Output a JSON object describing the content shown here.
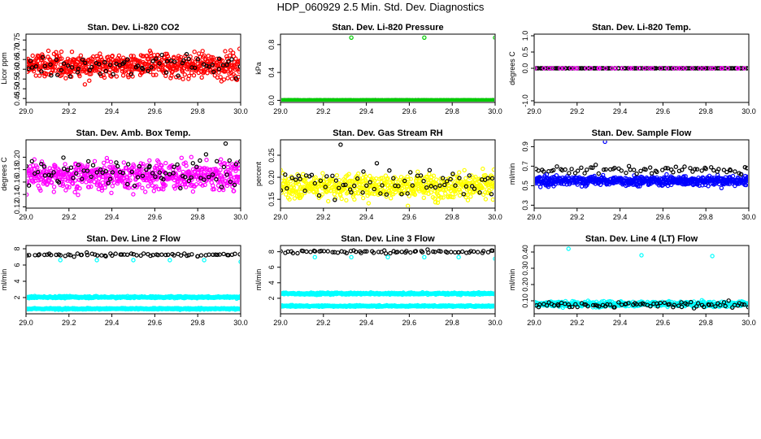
{
  "figure": {
    "title": "HDP_060929  2.5 Min. Std. Dev. Diagnostics"
  },
  "chart_data": [
    {
      "type": "scatter",
      "id": "co2",
      "title": "Stan. Dev. Li-820 CO2",
      "xlabel": "",
      "ylabel": "Licor ppm",
      "xlim": [
        29.0,
        30.0
      ],
      "ylim": [
        0.43,
        0.78
      ],
      "xticks": [
        "29.0",
        "29.2",
        "29.4",
        "29.6",
        "29.8",
        "30.0"
      ],
      "yticks": [
        "0.45",
        "0.50",
        "0.55",
        "0.60",
        "0.65",
        "0.70",
        "0.75"
      ],
      "series": [
        {
          "color": "#ff0000",
          "count": 600,
          "mean": 0.62,
          "spread": 0.045,
          "min": 0.43,
          "max": 0.78
        },
        {
          "color": "#000000",
          "count": 70,
          "mean": 0.62,
          "spread": 0.04,
          "min": 0.52,
          "max": 0.71
        }
      ]
    },
    {
      "type": "scatter",
      "id": "pressure",
      "title": "Stan. Dev. Li-820 Pressure",
      "xlabel": "",
      "ylabel": "kPa",
      "xlim": [
        29.0,
        30.0
      ],
      "ylim": [
        -0.03,
        0.95
      ],
      "xticks": [
        "29.0",
        "29.2",
        "29.4",
        "29.6",
        "29.8",
        "30.0"
      ],
      "yticks": [
        "0.0",
        "0.4",
        "0.8"
      ],
      "series": [
        {
          "color": "#000000",
          "count": 140,
          "mean": 0.0,
          "spread": 0.002,
          "min": 0.0,
          "max": 0.01
        },
        {
          "color": "#00cc00",
          "count": 300,
          "mean": 0.0,
          "spread": 0.002,
          "min": 0.0,
          "max": 0.01
        }
      ],
      "points": [
        {
          "color": "#00cc00",
          "x": 29.33,
          "y": 0.9
        },
        {
          "color": "#00cc00",
          "x": 29.67,
          "y": 0.9
        },
        {
          "color": "#00cc00",
          "x": 30.0,
          "y": 0.9
        }
      ]
    },
    {
      "type": "scatter",
      "id": "temp",
      "title": "Stan. Dev. Li-820 Temp.",
      "xlabel": "",
      "ylabel": "degrees C",
      "xlim": [
        29.0,
        30.0
      ],
      "ylim": [
        -1.05,
        1.05
      ],
      "xticks": [
        "29.0",
        "29.2",
        "29.4",
        "29.6",
        "29.8",
        "30.0"
      ],
      "yticks": [
        "-1.0",
        "0.0",
        "0.5",
        "1.0"
      ],
      "series": [
        {
          "color": "#000000",
          "count": 130,
          "mean": 0.0,
          "spread": 0.0,
          "min": 0.0,
          "max": 0.0
        },
        {
          "color": "#ff00ff",
          "count": 40,
          "mean": 0.0,
          "spread": 0.0,
          "min": 0.0,
          "max": 0.0
        }
      ]
    },
    {
      "type": "scatter",
      "id": "ambbox",
      "title": "Stan. Dev. Amb. Box Temp.",
      "xlabel": "",
      "ylabel": "degrees C",
      "xlim": [
        29.0,
        30.0
      ],
      "ylim": [
        0.118,
        0.228
      ],
      "xticks": [
        "29.0",
        "29.2",
        "29.4",
        "29.6",
        "29.8",
        "30.0"
      ],
      "yticks": [
        "0.12",
        "0.14",
        "0.16",
        "0.18",
        "0.20"
      ],
      "series": [
        {
          "color": "#ff00ff",
          "count": 600,
          "mean": 0.17,
          "spread": 0.016,
          "min": 0.12,
          "max": 0.215
        },
        {
          "color": "#000000",
          "count": 80,
          "mean": 0.176,
          "spread": 0.014,
          "min": 0.14,
          "max": 0.21
        }
      ],
      "points": [
        {
          "color": "#000000",
          "x": 29.93,
          "y": 0.222
        }
      ]
    },
    {
      "type": "scatter",
      "id": "rh",
      "title": "Stan. Dev. Gas Stream RH",
      "xlabel": "",
      "ylabel": "percent",
      "xlim": [
        29.0,
        30.0
      ],
      "ylim": [
        0.13,
        0.285
      ],
      "xticks": [
        "29.0",
        "29.2",
        "29.4",
        "29.6",
        "29.8",
        "30.0"
      ],
      "yticks": [
        "0.15",
        "0.20",
        "0.25"
      ],
      "series": [
        {
          "color": "#ffff00",
          "count": 600,
          "mean": 0.18,
          "spread": 0.02,
          "min": 0.135,
          "max": 0.275
        },
        {
          "color": "#000000",
          "count": 70,
          "mean": 0.185,
          "spread": 0.022,
          "min": 0.14,
          "max": 0.26
        }
      ],
      "points": [
        {
          "color": "#000000",
          "x": 29.28,
          "y": 0.274
        }
      ]
    },
    {
      "type": "scatter",
      "id": "flow",
      "title": "Stan. Dev. Sample Flow",
      "xlabel": "",
      "ylabel": "ml/min",
      "xlim": [
        29.0,
        30.0
      ],
      "ylim": [
        0.27,
        0.97
      ],
      "xticks": [
        "29.0",
        "29.2",
        "29.4",
        "29.6",
        "29.8",
        "30.0"
      ],
      "yticks": [
        "0.3",
        "0.5",
        "0.7",
        "0.9"
      ],
      "series": [
        {
          "color": "#0000ff",
          "count": 600,
          "mean": 0.55,
          "spread": 0.035,
          "min": 0.3,
          "max": 0.85
        },
        {
          "color": "#000000",
          "count": 70,
          "mean": 0.66,
          "spread": 0.03,
          "min": 0.55,
          "max": 0.78
        }
      ],
      "points": [
        {
          "color": "#0000ff",
          "x": 29.33,
          "y": 0.95
        }
      ]
    },
    {
      "type": "scatter",
      "id": "line2",
      "title": "Stan. Dev. Line 2 Flow",
      "xlabel": "",
      "ylabel": "ml/min",
      "xlim": [
        29.0,
        30.0
      ],
      "ylim": [
        0.0,
        8.4
      ],
      "xticks": [
        "29.0",
        "29.2",
        "29.4",
        "29.6",
        "29.8",
        "30.0"
      ],
      "yticks": [
        "2",
        "4",
        "6",
        "8"
      ],
      "series": [
        {
          "color": "#000000",
          "count": 70,
          "mean": 7.25,
          "spread": 0.12,
          "min": 6.8,
          "max": 7.7
        },
        {
          "color": "#00ffff",
          "count": 450,
          "mean": 2.05,
          "spread": 0.08,
          "min": 1.6,
          "max": 2.5
        },
        {
          "color": "#00ffff",
          "count": 450,
          "mean": 0.62,
          "spread": 0.06,
          "min": 0.3,
          "max": 0.9
        }
      ],
      "points": [
        {
          "color": "#00ffff",
          "x": 29.16,
          "y": 6.6
        },
        {
          "color": "#00ffff",
          "x": 29.33,
          "y": 6.6
        },
        {
          "color": "#00ffff",
          "x": 29.5,
          "y": 6.6
        },
        {
          "color": "#00ffff",
          "x": 29.67,
          "y": 6.6
        },
        {
          "color": "#00ffff",
          "x": 29.83,
          "y": 6.6
        },
        {
          "color": "#00ffff",
          "x": 30.0,
          "y": 6.4
        }
      ]
    },
    {
      "type": "scatter",
      "id": "line3",
      "title": "Stan. Dev. Line 3 Flow",
      "xlabel": "",
      "ylabel": "ml/min",
      "xlim": [
        29.0,
        30.0
      ],
      "ylim": [
        0.0,
        8.8
      ],
      "xticks": [
        "29.0",
        "29.2",
        "29.4",
        "29.6",
        "29.8",
        "30.0"
      ],
      "yticks": [
        "2",
        "4",
        "6",
        "8"
      ],
      "series": [
        {
          "color": "#000000",
          "count": 70,
          "mean": 8.0,
          "spread": 0.14,
          "min": 7.4,
          "max": 8.5
        },
        {
          "color": "#00ffff",
          "count": 450,
          "mean": 2.6,
          "spread": 0.09,
          "min": 2.1,
          "max": 3.0
        },
        {
          "color": "#00ffff",
          "count": 450,
          "mean": 1.0,
          "spread": 0.06,
          "min": 0.7,
          "max": 1.3
        }
      ],
      "points": [
        {
          "color": "#00ffff",
          "x": 29.16,
          "y": 7.3
        },
        {
          "color": "#00ffff",
          "x": 29.33,
          "y": 7.3
        },
        {
          "color": "#00ffff",
          "x": 29.5,
          "y": 7.3
        },
        {
          "color": "#00ffff",
          "x": 29.67,
          "y": 7.3
        },
        {
          "color": "#00ffff",
          "x": 29.83,
          "y": 7.3
        },
        {
          "color": "#00ffff",
          "x": 30.0,
          "y": 7.1
        }
      ]
    },
    {
      "type": "scatter",
      "id": "line4",
      "title": "Stan. Dev. Line 4 (LT) Flow",
      "xlabel": "",
      "ylabel": "ml/min",
      "xlim": [
        29.0,
        30.0
      ],
      "ylim": [
        0.02,
        0.44
      ],
      "xticks": [
        "29.0",
        "29.2",
        "29.4",
        "29.6",
        "29.8",
        "30.0"
      ],
      "yticks": [
        "0.10",
        "0.20",
        "0.30",
        "0.40"
      ],
      "series": [
        {
          "color": "#00ffff",
          "count": 500,
          "mean": 0.08,
          "spread": 0.012,
          "min": 0.04,
          "max": 0.12
        },
        {
          "color": "#000000",
          "count": 80,
          "mean": 0.075,
          "spread": 0.012,
          "min": 0.045,
          "max": 0.11
        }
      ],
      "points": [
        {
          "color": "#00ffff",
          "x": 29.16,
          "y": 0.42
        },
        {
          "color": "#00ffff",
          "x": 29.5,
          "y": 0.38
        },
        {
          "color": "#00ffff",
          "x": 29.83,
          "y": 0.375
        }
      ]
    }
  ]
}
